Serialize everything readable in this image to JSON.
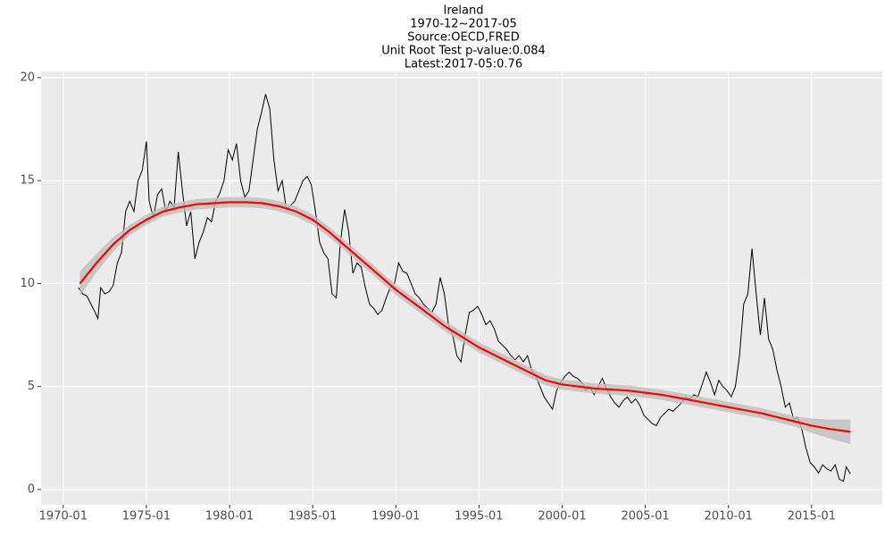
{
  "chart_data": {
    "type": "line",
    "title": "Ireland",
    "subtitle": [
      "1970-12~2017-05",
      "Source:OECD,FRED",
      "Unit Root Test p-value:0.084",
      "Latest:2017-05:0.76"
    ],
    "xlim": [
      "1968-09",
      "2019-04"
    ],
    "xticks": [
      "1970-01",
      "1975-01",
      "1980-01",
      "1985-01",
      "1990-01",
      "1995-01",
      "2000-01",
      "2005-01",
      "2010-01",
      "2015-01"
    ],
    "ylim": [
      -0.74,
      20.3
    ],
    "yticks": [
      0,
      5,
      10,
      15,
      20
    ],
    "grid": true,
    "series": [
      {
        "color": "#000000",
        "x": [
          "1970-12",
          "1971-03",
          "1971-06",
          "1971-09",
          "1971-12",
          "1972-02",
          "1972-04",
          "1972-07",
          "1972-10",
          "1973-01",
          "1973-04",
          "1973-07",
          "1973-10",
          "1974-01",
          "1974-04",
          "1974-07",
          "1974-10",
          "1975-01",
          "1975-03",
          "1975-06",
          "1975-09",
          "1975-12",
          "1976-03",
          "1976-06",
          "1976-09",
          "1976-12",
          "1977-03",
          "1977-06",
          "1977-09",
          "1977-12",
          "1978-03",
          "1978-06",
          "1978-09",
          "1978-12",
          "1979-03",
          "1979-06",
          "1979-09",
          "1979-12",
          "1980-03",
          "1980-06",
          "1980-09",
          "1980-12",
          "1981-03",
          "1981-06",
          "1981-09",
          "1981-12",
          "1982-03",
          "1982-06",
          "1982-09",
          "1982-12",
          "1983-03",
          "1983-06",
          "1983-09",
          "1983-12",
          "1984-03",
          "1984-06",
          "1984-09",
          "1984-12",
          "1985-03",
          "1985-06",
          "1985-09",
          "1985-12",
          "1986-03",
          "1986-06",
          "1986-09",
          "1986-12",
          "1987-03",
          "1987-06",
          "1987-09",
          "1987-12",
          "1988-03",
          "1988-06",
          "1988-09",
          "1988-12",
          "1989-03",
          "1989-06",
          "1989-09",
          "1989-12",
          "1990-03",
          "1990-06",
          "1990-09",
          "1990-12",
          "1991-03",
          "1991-06",
          "1991-09",
          "1991-12",
          "1992-03",
          "1992-06",
          "1992-09",
          "1992-12",
          "1993-03",
          "1993-06",
          "1993-09",
          "1993-12",
          "1994-03",
          "1994-06",
          "1994-09",
          "1994-12",
          "1995-03",
          "1995-06",
          "1995-09",
          "1995-12",
          "1996-03",
          "1996-06",
          "1996-09",
          "1996-12",
          "1997-03",
          "1997-06",
          "1997-09",
          "1997-12",
          "1998-03",
          "1998-06",
          "1998-09",
          "1998-12",
          "1999-03",
          "1999-06",
          "1999-09",
          "1999-12",
          "2000-03",
          "2000-06",
          "2000-09",
          "2000-12",
          "2001-03",
          "2001-06",
          "2001-09",
          "2001-12",
          "2002-03",
          "2002-06",
          "2002-09",
          "2002-12",
          "2003-03",
          "2003-06",
          "2003-09",
          "2003-12",
          "2004-03",
          "2004-06",
          "2004-09",
          "2004-12",
          "2005-03",
          "2005-06",
          "2005-09",
          "2005-12",
          "2006-03",
          "2006-06",
          "2006-09",
          "2006-12",
          "2007-03",
          "2007-06",
          "2007-09",
          "2007-12",
          "2008-03",
          "2008-06",
          "2008-09",
          "2008-12",
          "2009-03",
          "2009-06",
          "2009-09",
          "2009-12",
          "2010-03",
          "2010-06",
          "2010-09",
          "2010-12",
          "2011-03",
          "2011-06",
          "2011-09",
          "2011-12",
          "2012-03",
          "2012-06",
          "2012-09",
          "2012-12",
          "2013-03",
          "2013-06",
          "2013-09",
          "2013-12",
          "2014-03",
          "2014-06",
          "2014-09",
          "2014-12",
          "2015-03",
          "2015-06",
          "2015-09",
          "2015-12",
          "2016-03",
          "2016-06",
          "2016-09",
          "2016-12",
          "2017-02",
          "2017-05"
        ],
        "values": [
          9.8,
          9.5,
          9.4,
          9.0,
          8.6,
          8.3,
          9.8,
          9.5,
          9.6,
          9.9,
          11.0,
          11.5,
          13.5,
          14.0,
          13.5,
          15.0,
          15.5,
          16.9,
          14.0,
          13.2,
          14.3,
          14.6,
          13.5,
          14.0,
          13.7,
          16.4,
          14.5,
          12.8,
          13.5,
          11.2,
          12.0,
          12.5,
          13.2,
          13.0,
          14.0,
          14.4,
          15.0,
          16.5,
          16.0,
          16.8,
          15.0,
          14.2,
          14.5,
          16.0,
          17.5,
          18.3,
          19.2,
          18.5,
          16.0,
          14.5,
          15.0,
          13.6,
          13.8,
          14.0,
          14.5,
          15.0,
          15.2,
          14.8,
          13.5,
          12.0,
          11.5,
          11.2,
          9.5,
          9.3,
          12.0,
          13.6,
          12.5,
          10.5,
          11.0,
          10.8,
          9.8,
          9.0,
          8.8,
          8.5,
          8.7,
          9.3,
          9.8,
          10.0,
          11.0,
          10.6,
          10.5,
          10.0,
          9.5,
          9.3,
          9.0,
          8.8,
          8.6,
          9.0,
          10.3,
          9.5,
          8.0,
          7.5,
          6.5,
          6.2,
          7.5,
          8.6,
          8.7,
          8.9,
          8.5,
          8.0,
          8.2,
          7.8,
          7.2,
          7.0,
          6.8,
          6.5,
          6.3,
          6.5,
          6.2,
          6.5,
          5.8,
          5.5,
          5.0,
          4.5,
          4.2,
          3.9,
          4.8,
          5.2,
          5.5,
          5.7,
          5.5,
          5.4,
          5.2,
          4.8,
          5.0,
          4.6,
          5.0,
          5.4,
          4.9,
          4.5,
          4.2,
          4.0,
          4.3,
          4.5,
          4.2,
          4.4,
          4.1,
          3.6,
          3.4,
          3.2,
          3.1,
          3.5,
          3.7,
          3.9,
          3.8,
          4.0,
          4.2,
          4.5,
          4.4,
          4.6,
          4.5,
          5.1,
          5.7,
          5.2,
          4.6,
          5.3,
          5.0,
          4.8,
          4.5,
          5.0,
          6.5,
          9.0,
          9.5,
          11.7,
          9.5,
          7.5,
          9.3,
          7.3,
          6.8,
          5.8,
          5.0,
          4.0,
          4.2,
          3.4,
          3.5,
          2.9,
          2.0,
          1.3,
          1.1,
          0.8,
          1.2,
          1.0,
          0.9,
          1.2,
          0.5,
          0.4,
          1.1,
          0.76
        ]
      },
      {
        "color": "#ff0000",
        "x": [
          "1971-01",
          "1972-01",
          "1973-01",
          "1974-01",
          "1975-01",
          "1976-01",
          "1977-01",
          "1978-01",
          "1979-01",
          "1980-01",
          "1981-01",
          "1982-01",
          "1983-01",
          "1984-01",
          "1985-01",
          "1986-01",
          "1987-01",
          "1988-01",
          "1989-01",
          "1990-01",
          "1991-01",
          "1992-01",
          "1993-01",
          "1994-01",
          "1995-01",
          "1996-01",
          "1997-01",
          "1998-01",
          "1999-01",
          "2000-01",
          "2001-01",
          "2002-01",
          "2003-01",
          "2004-01",
          "2005-01",
          "2006-01",
          "2007-01",
          "2008-01",
          "2009-01",
          "2010-01",
          "2011-01",
          "2012-01",
          "2013-01",
          "2014-01",
          "2015-01",
          "2016-01",
          "2017-05"
        ],
        "values": [
          10.0,
          11.0,
          11.9,
          12.6,
          13.1,
          13.5,
          13.7,
          13.85,
          13.9,
          13.95,
          13.95,
          13.9,
          13.75,
          13.5,
          13.1,
          12.5,
          11.8,
          11.1,
          10.4,
          9.7,
          9.1,
          8.5,
          7.9,
          7.4,
          6.9,
          6.5,
          6.1,
          5.7,
          5.3,
          5.1,
          5.0,
          4.9,
          4.85,
          4.8,
          4.7,
          4.6,
          4.45,
          4.3,
          4.15,
          4.0,
          3.85,
          3.7,
          3.5,
          3.3,
          3.1,
          2.95,
          2.8
        ],
        "band_color": "#bebebe",
        "lower": [
          9.4,
          10.55,
          11.55,
          12.35,
          12.85,
          13.25,
          13.45,
          13.6,
          13.65,
          13.7,
          13.7,
          13.65,
          13.5,
          13.25,
          12.85,
          12.25,
          11.55,
          10.85,
          10.15,
          9.45,
          8.85,
          8.25,
          7.65,
          7.15,
          6.65,
          6.25,
          5.85,
          5.45,
          5.05,
          4.85,
          4.75,
          4.65,
          4.6,
          4.55,
          4.45,
          4.35,
          4.2,
          4.05,
          3.9,
          3.75,
          3.6,
          3.45,
          3.25,
          3.05,
          2.75,
          2.5,
          2.2
        ],
        "upper": [
          10.6,
          11.45,
          12.25,
          12.85,
          13.35,
          13.75,
          13.95,
          14.1,
          14.15,
          14.2,
          14.2,
          14.15,
          14.0,
          13.75,
          13.35,
          12.75,
          12.05,
          11.35,
          10.65,
          9.95,
          9.35,
          8.75,
          8.15,
          7.65,
          7.15,
          6.75,
          6.35,
          5.95,
          5.55,
          5.35,
          5.25,
          5.15,
          5.1,
          5.05,
          4.95,
          4.85,
          4.7,
          4.55,
          4.4,
          4.25,
          4.1,
          3.95,
          3.75,
          3.55,
          3.45,
          3.4,
          3.4
        ]
      }
    ]
  }
}
